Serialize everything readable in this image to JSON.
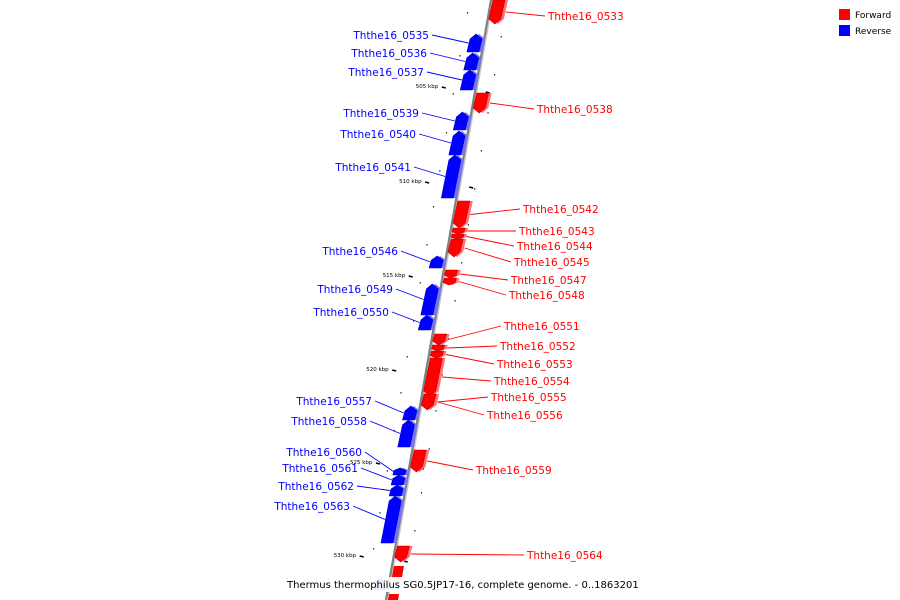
{
  "caption": "Thermus thermophilus SG0.5JP17-16, complete genome. - 0..1863201",
  "legend": [
    {
      "label": "Forward",
      "color": "#ff0000"
    },
    {
      "label": "Reverse",
      "color": "#0000ff"
    }
  ],
  "colors": {
    "forward": "#ff0000",
    "reverse": "#0000ff",
    "backbone": "#808080"
  },
  "ticks": [
    {
      "label": "505 kbp"
    },
    {
      "label": "510 kbp"
    },
    {
      "label": "515 kbp"
    },
    {
      "label": "520 kbp"
    },
    {
      "label": "525 kbp"
    },
    {
      "label": "530 kbp"
    }
  ],
  "genes": [
    {
      "id": "Ththe16_0533",
      "strand": "forward"
    },
    {
      "id": "Ththe16_0535",
      "strand": "reverse"
    },
    {
      "id": "Ththe16_0536",
      "strand": "reverse"
    },
    {
      "id": "Ththe16_0537",
      "strand": "reverse"
    },
    {
      "id": "Ththe16_0538",
      "strand": "forward"
    },
    {
      "id": "Ththe16_0539",
      "strand": "reverse"
    },
    {
      "id": "Ththe16_0540",
      "strand": "reverse"
    },
    {
      "id": "Ththe16_0541",
      "strand": "reverse"
    },
    {
      "id": "Ththe16_0542",
      "strand": "forward"
    },
    {
      "id": "Ththe16_0543",
      "strand": "forward"
    },
    {
      "id": "Ththe16_0544",
      "strand": "forward"
    },
    {
      "id": "Ththe16_0545",
      "strand": "forward"
    },
    {
      "id": "Ththe16_0546",
      "strand": "reverse"
    },
    {
      "id": "Ththe16_0547",
      "strand": "forward"
    },
    {
      "id": "Ththe16_0548",
      "strand": "forward"
    },
    {
      "id": "Ththe16_0549",
      "strand": "reverse"
    },
    {
      "id": "Ththe16_0550",
      "strand": "reverse"
    },
    {
      "id": "Ththe16_0551",
      "strand": "forward"
    },
    {
      "id": "Ththe16_0552",
      "strand": "forward"
    },
    {
      "id": "Ththe16_0553",
      "strand": "forward"
    },
    {
      "id": "Ththe16_0554",
      "strand": "forward"
    },
    {
      "id": "Ththe16_0555",
      "strand": "forward"
    },
    {
      "id": "Ththe16_0556",
      "strand": "forward"
    },
    {
      "id": "Ththe16_0557",
      "strand": "reverse"
    },
    {
      "id": "Ththe16_0558",
      "strand": "reverse"
    },
    {
      "id": "Ththe16_0559",
      "strand": "forward"
    },
    {
      "id": "Ththe16_0560",
      "strand": "reverse"
    },
    {
      "id": "Ththe16_0561",
      "strand": "reverse"
    },
    {
      "id": "Ththe16_0562",
      "strand": "reverse"
    },
    {
      "id": "Ththe16_0563",
      "strand": "reverse"
    },
    {
      "id": "Ththe16_0564",
      "strand": "forward"
    }
  ]
}
